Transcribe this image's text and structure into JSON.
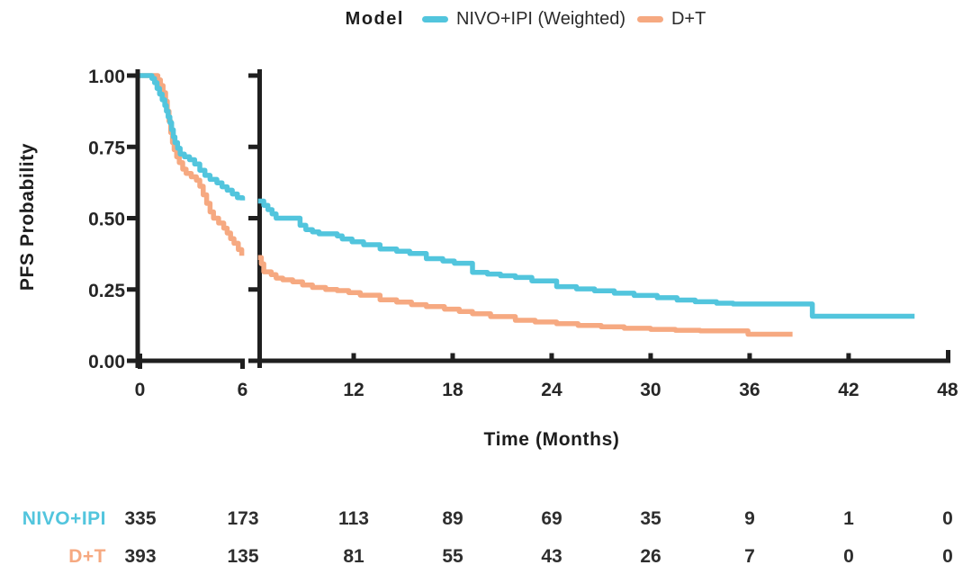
{
  "legend": {
    "title": "Model"
  },
  "chart_data": {
    "type": "line",
    "subtype": "kaplan-meier-step-curves",
    "title": "",
    "xlabel": "Time (Months)",
    "ylabel": "PFS Probability",
    "x_ticks": [
      0,
      6,
      12,
      18,
      24,
      30,
      36,
      42,
      48
    ],
    "y_ticks": [
      0.0,
      0.25,
      0.5,
      0.75,
      1.0
    ],
    "xlim": [
      0,
      48
    ],
    "ylim": [
      0,
      1
    ],
    "grid": false,
    "legend_position": "top-center",
    "axis_break_months": [
      6,
      6.2
    ],
    "axis_color": "#1f1f1f",
    "tick_text_color": "#262626",
    "series": [
      {
        "name": "NIVO+IPI (Weighted)",
        "color": "#52c5dd",
        "points": [
          [
            0,
            1.0
          ],
          [
            0.55,
            1.0
          ],
          [
            0.7,
            0.99
          ],
          [
            0.85,
            0.975
          ],
          [
            1.0,
            0.955
          ],
          [
            1.15,
            0.935
          ],
          [
            1.3,
            0.915
          ],
          [
            1.45,
            0.895
          ],
          [
            1.55,
            0.875
          ],
          [
            1.65,
            0.855
          ],
          [
            1.75,
            0.835
          ],
          [
            1.85,
            0.81
          ],
          [
            1.95,
            0.785
          ],
          [
            2.05,
            0.765
          ],
          [
            2.2,
            0.745
          ],
          [
            2.35,
            0.725
          ],
          [
            2.6,
            0.715
          ],
          [
            2.9,
            0.705
          ],
          [
            3.2,
            0.69
          ],
          [
            3.5,
            0.668
          ],
          [
            3.8,
            0.65
          ],
          [
            4.1,
            0.636
          ],
          [
            4.5,
            0.624
          ],
          [
            4.8,
            0.61
          ],
          [
            5.1,
            0.598
          ],
          [
            5.4,
            0.585
          ],
          [
            5.7,
            0.572
          ],
          [
            6.0,
            0.562
          ],
          [
            6.2,
            0.56
          ],
          [
            6.55,
            0.545
          ],
          [
            6.8,
            0.53
          ],
          [
            7.05,
            0.515
          ],
          [
            7.3,
            0.5
          ],
          [
            8.6,
            0.5
          ],
          [
            8.75,
            0.475
          ],
          [
            9.1,
            0.46
          ],
          [
            9.5,
            0.452
          ],
          [
            9.9,
            0.445
          ],
          [
            11.0,
            0.438
          ],
          [
            11.3,
            0.427
          ],
          [
            11.9,
            0.417
          ],
          [
            12.6,
            0.407
          ],
          [
            13.6,
            0.392
          ],
          [
            14.6,
            0.384
          ],
          [
            15.4,
            0.376
          ],
          [
            16.4,
            0.358
          ],
          [
            17.4,
            0.35
          ],
          [
            18.1,
            0.342
          ],
          [
            19.2,
            0.31
          ],
          [
            20.1,
            0.304
          ],
          [
            20.9,
            0.298
          ],
          [
            21.8,
            0.292
          ],
          [
            22.8,
            0.28
          ],
          [
            24.3,
            0.26
          ],
          [
            25.5,
            0.252
          ],
          [
            26.6,
            0.245
          ],
          [
            27.8,
            0.237
          ],
          [
            29.0,
            0.229
          ],
          [
            30.4,
            0.221
          ],
          [
            31.6,
            0.213
          ],
          [
            32.7,
            0.207
          ],
          [
            34.0,
            0.202
          ],
          [
            35.0,
            0.199
          ],
          [
            39.7,
            0.199
          ],
          [
            39.8,
            0.156
          ],
          [
            46.0,
            0.156
          ]
        ]
      },
      {
        "name": "D+T",
        "color": "#f6a981",
        "points": [
          [
            0,
            1.0
          ],
          [
            0.9,
            1.0
          ],
          [
            1.05,
            0.985
          ],
          [
            1.2,
            0.965
          ],
          [
            1.35,
            0.94
          ],
          [
            1.5,
            0.91
          ],
          [
            1.6,
            0.875
          ],
          [
            1.7,
            0.84
          ],
          [
            1.8,
            0.8
          ],
          [
            1.9,
            0.765
          ],
          [
            2.0,
            0.74
          ],
          [
            2.15,
            0.715
          ],
          [
            2.3,
            0.695
          ],
          [
            2.5,
            0.672
          ],
          [
            2.7,
            0.657
          ],
          [
            3.0,
            0.645
          ],
          [
            3.3,
            0.633
          ],
          [
            3.5,
            0.612
          ],
          [
            3.7,
            0.582
          ],
          [
            3.9,
            0.552
          ],
          [
            4.1,
            0.522
          ],
          [
            4.3,
            0.5
          ],
          [
            4.6,
            0.483
          ],
          [
            4.9,
            0.465
          ],
          [
            5.1,
            0.448
          ],
          [
            5.3,
            0.428
          ],
          [
            5.5,
            0.412
          ],
          [
            5.75,
            0.39
          ],
          [
            5.95,
            0.368
          ],
          [
            6.2,
            0.362
          ],
          [
            6.4,
            0.34
          ],
          [
            6.55,
            0.312
          ],
          [
            7.0,
            0.302
          ],
          [
            7.3,
            0.29
          ],
          [
            7.7,
            0.284
          ],
          [
            8.3,
            0.277
          ],
          [
            8.9,
            0.266
          ],
          [
            9.5,
            0.257
          ],
          [
            10.3,
            0.25
          ],
          [
            11.0,
            0.246
          ],
          [
            11.7,
            0.239
          ],
          [
            12.4,
            0.23
          ],
          [
            13.6,
            0.214
          ],
          [
            14.6,
            0.206
          ],
          [
            15.5,
            0.197
          ],
          [
            16.4,
            0.19
          ],
          [
            17.5,
            0.181
          ],
          [
            18.4,
            0.173
          ],
          [
            19.2,
            0.165
          ],
          [
            20.3,
            0.155
          ],
          [
            21.8,
            0.142
          ],
          [
            23.0,
            0.136
          ],
          [
            24.3,
            0.13
          ],
          [
            25.6,
            0.124
          ],
          [
            27.0,
            0.119
          ],
          [
            28.4,
            0.114
          ],
          [
            30.0,
            0.11
          ],
          [
            31.5,
            0.107
          ],
          [
            33.0,
            0.105
          ],
          [
            35.8,
            0.105
          ],
          [
            35.9,
            0.093
          ],
          [
            38.6,
            0.093
          ]
        ]
      }
    ],
    "risk_table": {
      "time_points": [
        0,
        6,
        12,
        18,
        24,
        30,
        36,
        42,
        48
      ],
      "rows": [
        {
          "label": "NIVO+IPI",
          "color": "#52c5dd",
          "values": [
            335,
            173,
            113,
            89,
            69,
            35,
            9,
            1,
            0
          ]
        },
        {
          "label": "D+T",
          "color": "#f6a981",
          "values": [
            393,
            135,
            81,
            55,
            43,
            26,
            7,
            0,
            0
          ]
        }
      ]
    }
  }
}
